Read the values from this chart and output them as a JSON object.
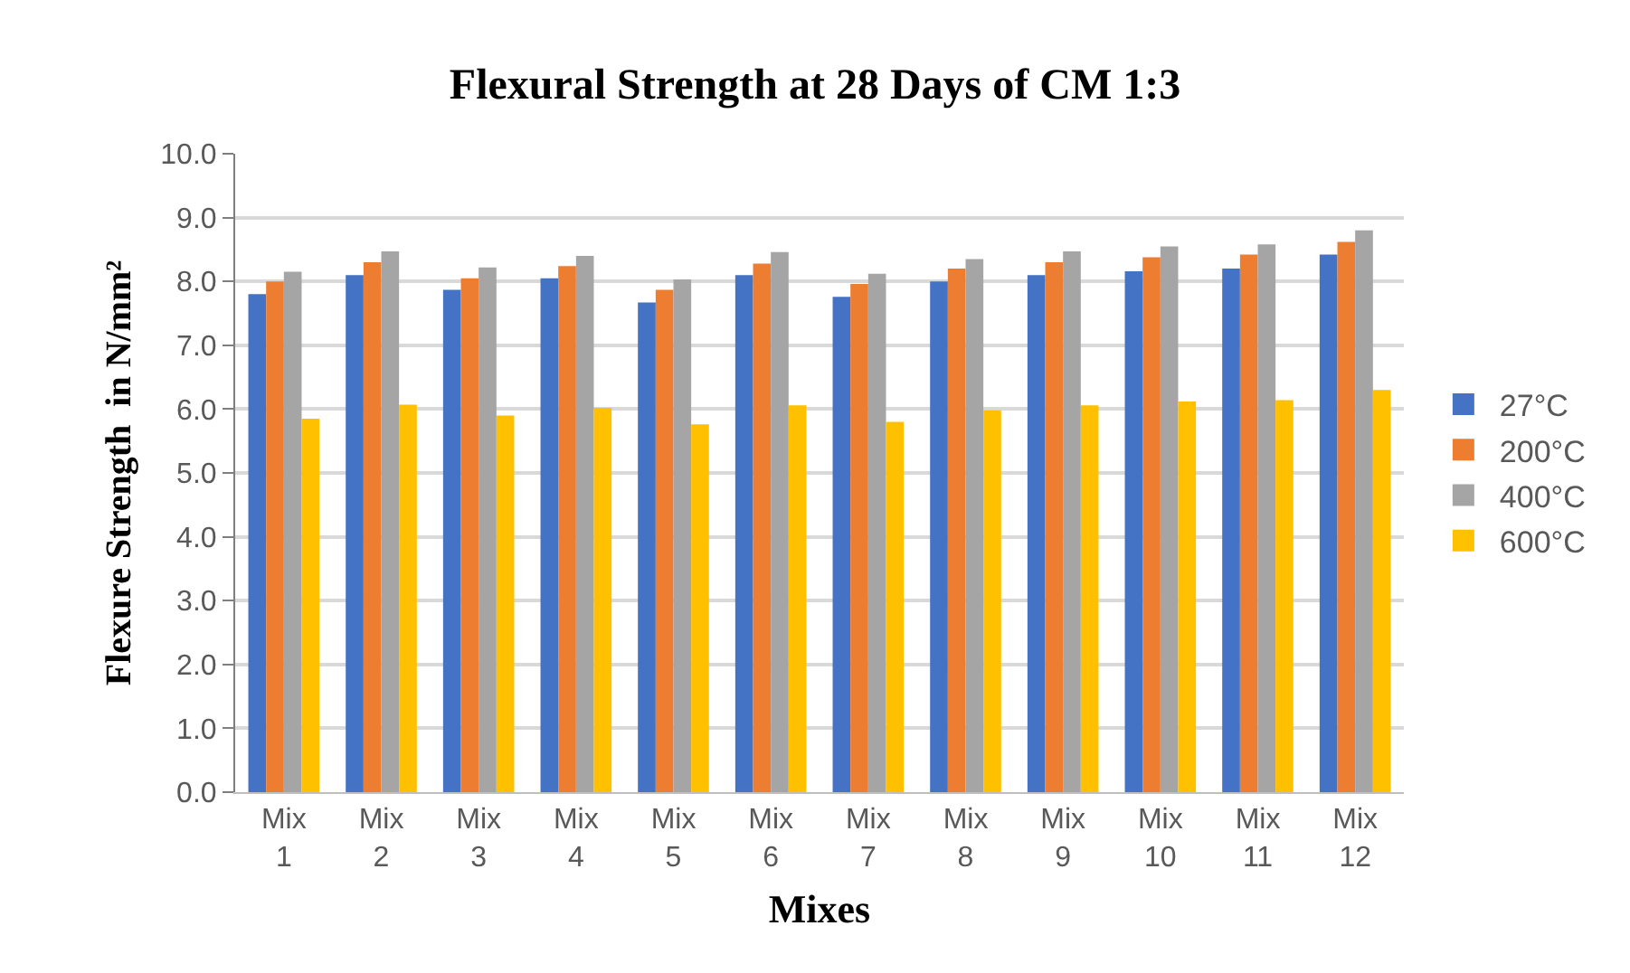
{
  "chart_data": {
    "type": "bar",
    "title": "Flexural Strength at 28 Days of CM 1:3",
    "xlabel": "Mixes",
    "ylabel": "Flexure Strength  in N/mm²",
    "categories": [
      "Mix 1",
      "Mix 2",
      "Mix 3",
      "Mix 4",
      "Mix 5",
      "Mix 6",
      "Mix 7",
      "Mix 8",
      "Mix 9",
      "Mix 10",
      "Mix 11",
      "Mix 12"
    ],
    "series": [
      {
        "name": "27°C",
        "color": "#4472c4",
        "values": [
          7.8,
          8.1,
          7.87,
          8.05,
          7.67,
          8.1,
          7.76,
          8.0,
          8.1,
          8.16,
          8.2,
          8.42
        ]
      },
      {
        "name": "200°C",
        "color": "#ed7d31",
        "values": [
          8.0,
          8.3,
          8.05,
          8.24,
          7.87,
          8.28,
          7.96,
          8.2,
          8.3,
          8.38,
          8.42,
          8.62
        ]
      },
      {
        "name": "400°C",
        "color": "#a5a5a5",
        "values": [
          8.15,
          8.47,
          8.22,
          8.4,
          8.03,
          8.46,
          8.12,
          8.35,
          8.47,
          8.55,
          8.58,
          8.8
        ]
      },
      {
        "name": "600°C",
        "color": "#ffc000",
        "values": [
          5.85,
          6.07,
          5.9,
          6.02,
          5.76,
          6.06,
          5.8,
          5.98,
          6.06,
          6.12,
          6.14,
          6.3
        ]
      }
    ],
    "ylim": [
      0,
      10
    ],
    "yticks": [
      {
        "value": 0,
        "label": "0.0"
      },
      {
        "value": 1,
        "label": "1.0"
      },
      {
        "value": 2,
        "label": "2.0"
      },
      {
        "value": 3,
        "label": "3.0"
      },
      {
        "value": 4,
        "label": "4.0"
      },
      {
        "value": 5,
        "label": "5.0"
      },
      {
        "value": 6,
        "label": "6.0"
      },
      {
        "value": 7,
        "label": "7.0"
      },
      {
        "value": 8,
        "label": "8.0"
      },
      {
        "value": 9,
        "label": "9.0"
      },
      {
        "value": 10,
        "label": "10.0"
      }
    ],
    "grid": "y",
    "legend": "right"
  }
}
